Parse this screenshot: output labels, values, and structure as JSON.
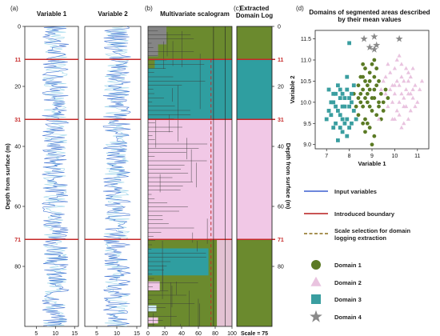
{
  "chart_data": [
    {
      "panel": "(a)",
      "type": "line",
      "title": "Variable 1",
      "ylabel": "Depth from surface (m)",
      "ylim": [
        0,
        100
      ],
      "xlim": [
        2,
        16
      ],
      "x_ticks": [
        5,
        10,
        15
      ],
      "y_ticks": [
        0,
        20,
        40,
        60,
        80
      ],
      "boundaries": [
        11,
        31,
        71
      ],
      "mean": 10,
      "amplitude": 3.5
    },
    {
      "panel": "",
      "type": "line",
      "title": "Variable 2",
      "ylim": [
        0,
        100
      ],
      "xlim": [
        2,
        16
      ],
      "x_ticks": [
        5,
        10,
        15
      ],
      "y_ticks": [
        0,
        20,
        40,
        60,
        80
      ],
      "boundaries": [
        11,
        31,
        71
      ],
      "mean": 10,
      "amplitude": 3.5
    },
    {
      "panel": "(b)",
      "type": "heatmap",
      "title": "Multivariate scalogram",
      "xlim": [
        0,
        100
      ],
      "x_ticks": [
        0,
        20,
        40,
        60,
        80,
        100
      ],
      "ylim": [
        0,
        100
      ],
      "scale_selection": 75,
      "boundaries": [
        11,
        31,
        71
      ],
      "segments": [
        {
          "from": 0,
          "to": 11,
          "domain": "Domain 1"
        },
        {
          "from": 11,
          "to": 31,
          "domain": "Domain 3"
        },
        {
          "from": 31,
          "to": 71,
          "domain": "Domain 2"
        },
        {
          "from": 71,
          "to": 100,
          "domain": "Domain 1"
        }
      ]
    },
    {
      "panel": "(c)",
      "type": "table",
      "title": "Extracted Domain Log",
      "ylabel": "Depth from surface (m)",
      "y_ticks": [
        0,
        20,
        40,
        60,
        80
      ],
      "boundaries": [
        11,
        31,
        71
      ],
      "scale_label": "Scale = 75",
      "segments": [
        {
          "from": 0,
          "to": 11,
          "domain": "Domain 1"
        },
        {
          "from": 11,
          "to": 31,
          "domain": "Domain 3"
        },
        {
          "from": 31,
          "to": 71,
          "domain": "Domain 2"
        },
        {
          "from": 71,
          "to": 100,
          "domain": "Domain 1"
        }
      ]
    },
    {
      "panel": "(d)",
      "type": "scatter",
      "title": "Domains of segmented areas described by their mean values",
      "xlabel": "Variable 1",
      "ylabel": "Variable 2",
      "xlim": [
        6.5,
        11.5
      ],
      "ylim": [
        8.9,
        11.7
      ],
      "x_ticks": [
        7,
        8,
        9,
        10,
        11
      ],
      "y_ticks": [
        9.0,
        9.5,
        10.0,
        10.5,
        11.0,
        11.5
      ],
      "series": [
        {
          "name": "Domain 1",
          "marker": "circle",
          "color": "#5b7a24",
          "points": [
            [
              8.5,
              10.2
            ],
            [
              8.7,
              10.5
            ],
            [
              8.9,
              10.3
            ],
            [
              9.1,
              10.1
            ],
            [
              8.6,
              9.9
            ],
            [
              8.8,
              10.0
            ],
            [
              9.0,
              9.8
            ],
            [
              9.2,
              10.4
            ],
            [
              8.4,
              9.7
            ],
            [
              8.7,
              9.6
            ],
            [
              9.3,
              9.9
            ],
            [
              8.9,
              10.7
            ],
            [
              9.1,
              10.6
            ],
            [
              8.6,
              10.3
            ],
            [
              9.4,
              10.2
            ],
            [
              8.8,
              9.5
            ],
            [
              9.0,
              10.9
            ],
            [
              8.5,
              10.0
            ],
            [
              9.2,
              9.7
            ],
            [
              8.7,
              10.8
            ],
            [
              9.3,
              10.5
            ],
            [
              8.9,
              9.4
            ],
            [
              8.4,
              10.4
            ],
            [
              9.1,
              9.2
            ],
            [
              8.6,
              10.6
            ],
            [
              9.5,
              10.0
            ],
            [
              8.8,
              10.2
            ],
            [
              9.0,
              10.1
            ],
            [
              8.3,
              9.9
            ],
            [
              9.2,
              10.8
            ],
            [
              8.7,
              9.3
            ],
            [
              9.4,
              9.6
            ],
            [
              8.5,
              10.6
            ],
            [
              9.6,
              10.3
            ],
            [
              8.9,
              9.9
            ],
            [
              9.1,
              11.0
            ],
            [
              8.6,
              9.5
            ],
            [
              9.0,
              9.0
            ],
            [
              8.2,
              10.2
            ],
            [
              9.3,
              10.0
            ],
            [
              8.8,
              10.4
            ],
            [
              9.5,
              9.8
            ],
            [
              8.7,
              10.1
            ],
            [
              9.1,
              10.3
            ],
            [
              8.9,
              10.5
            ],
            [
              8.4,
              10.1
            ],
            [
              9.7,
              10.1
            ],
            [
              8.6,
              10.9
            ]
          ]
        },
        {
          "name": "Domain 2",
          "marker": "triangle",
          "color": "#e9c3df",
          "points": [
            [
              9.6,
              10.6
            ],
            [
              9.8,
              10.3
            ],
            [
              10.0,
              10.8
            ],
            [
              10.2,
              10.4
            ],
            [
              10.4,
              10.1
            ],
            [
              10.6,
              10.5
            ],
            [
              10.8,
              10.3
            ],
            [
              11.0,
              10.0
            ],
            [
              9.9,
              10.0
            ],
            [
              10.1,
              9.8
            ],
            [
              10.3,
              10.6
            ],
            [
              10.5,
              9.9
            ],
            [
              10.7,
              10.2
            ],
            [
              10.9,
              10.4
            ],
            [
              9.7,
              9.9
            ],
            [
              10.0,
              10.2
            ],
            [
              10.2,
              9.7
            ],
            [
              10.4,
              10.5
            ],
            [
              10.6,
              9.6
            ],
            [
              10.8,
              10.1
            ],
            [
              11.1,
              10.3
            ],
            [
              9.8,
              10.7
            ],
            [
              10.1,
              11.0
            ],
            [
              10.3,
              10.2
            ],
            [
              10.5,
              10.8
            ],
            [
              10.7,
              9.8
            ],
            [
              9.5,
              10.5
            ],
            [
              10.0,
              9.6
            ],
            [
              10.2,
              11.1
            ],
            [
              10.4,
              9.5
            ],
            [
              10.6,
              10.7
            ],
            [
              10.9,
              9.9
            ],
            [
              9.9,
              10.4
            ],
            [
              10.1,
              10.5
            ],
            [
              10.3,
              9.4
            ],
            [
              10.5,
              10.3
            ],
            [
              10.7,
              10.6
            ],
            [
              9.6,
              10.2
            ],
            [
              10.8,
              10.8
            ],
            [
              10.0,
              10.4
            ],
            [
              9.4,
              10.3
            ],
            [
              9.7,
              10.9
            ],
            [
              10.2,
              10.0
            ],
            [
              10.4,
              9.9
            ],
            [
              10.6,
              10.2
            ],
            [
              11.2,
              10.5
            ],
            [
              9.9,
              9.6
            ],
            [
              10.3,
              10.9
            ],
            [
              9.3,
              9.6
            ]
          ]
        },
        {
          "name": "Domain 3",
          "marker": "square",
          "color": "#3a9ea0",
          "points": [
            [
              7.1,
              10.3
            ],
            [
              7.3,
              10.0
            ],
            [
              7.5,
              9.8
            ],
            [
              7.7,
              10.2
            ],
            [
              7.9,
              9.6
            ],
            [
              8.1,
              10.0
            ],
            [
              7.4,
              9.5
            ],
            [
              7.6,
              10.1
            ],
            [
              7.8,
              9.9
            ],
            [
              8.0,
              9.4
            ],
            [
              7.2,
              9.7
            ],
            [
              7.5,
              10.4
            ],
            [
              7.7,
              9.3
            ],
            [
              7.9,
              10.3
            ],
            [
              8.2,
              9.8
            ],
            [
              7.3,
              9.4
            ],
            [
              7.6,
              9.7
            ],
            [
              7.8,
              10.1
            ],
            [
              8.0,
              9.9
            ],
            [
              7.4,
              10.2
            ],
            [
              7.7,
              9.6
            ],
            [
              7.9,
              9.2
            ],
            [
              8.1,
              10.2
            ],
            [
              7.5,
              9.1
            ],
            [
              7.2,
              10.0
            ],
            [
              7.8,
              9.5
            ],
            [
              7.4,
              9.9
            ],
            [
              8.3,
              9.6
            ],
            [
              7.6,
              10.3
            ],
            [
              8.0,
              10.1
            ],
            [
              7.1,
              9.8
            ],
            [
              7.7,
              9.9
            ],
            [
              7.9,
              10.6
            ],
            [
              7.3,
              10.2
            ],
            [
              8.1,
              9.5
            ],
            [
              8.0,
              11.4
            ],
            [
              7.0,
              9.6
            ],
            [
              8.2,
              10.4
            ],
            [
              7.6,
              9.4
            ]
          ]
        },
        {
          "name": "Domain 4",
          "marker": "star",
          "color": "#8a8a8a",
          "points": [
            [
              8.65,
              11.5
            ],
            [
              8.9,
              11.3
            ],
            [
              9.1,
              11.55
            ],
            [
              9.2,
              11.35
            ],
            [
              9.1,
              11.25
            ],
            [
              10.2,
              11.5
            ]
          ]
        }
      ]
    }
  ],
  "legend": {
    "lines": [
      {
        "label": "Input variables",
        "color": "#3b5fd1",
        "style": "solid"
      },
      {
        "label": "Introduced boundary",
        "color": "#b71c1c",
        "style": "solid"
      },
      {
        "label": "Scale selection for domain logging extraction",
        "color": "#8a6d1a",
        "style": "dashed"
      }
    ],
    "markers": [
      {
        "label": "Domain 1",
        "marker": "circle",
        "color": "#5b7a24"
      },
      {
        "label": "Domain 2",
        "marker": "triangle",
        "color": "#e9c3df"
      },
      {
        "label": "Domain 3",
        "marker": "square",
        "color": "#3a9ea0"
      },
      {
        "label": "Domain 4",
        "marker": "star",
        "color": "#8a8a8a"
      }
    ]
  },
  "colors": {
    "domain1": "#6b8a2e",
    "domain2": "#f1c8e6",
    "domain3": "#2f9ea0",
    "domain4": "#858585",
    "boundary": "#c62828",
    "signal": "#3b6fd1"
  }
}
